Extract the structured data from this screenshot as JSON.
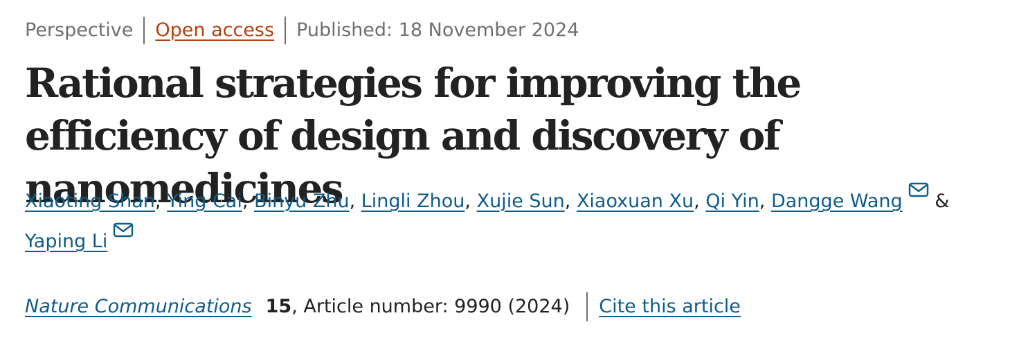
{
  "meta": {
    "article_type": "Perspective",
    "access": "Open access",
    "published": "Published: 18 November 2024"
  },
  "title": "Rational strategies for improving the efficiency of design and discovery of nanomedicines",
  "authors": [
    {
      "name": "Xiaoting Shan",
      "corresponding": false
    },
    {
      "name": "Ying Cai",
      "corresponding": false
    },
    {
      "name": "Binyu Zhu",
      "corresponding": false
    },
    {
      "name": "Lingli Zhou",
      "corresponding": false
    },
    {
      "name": "Xujie Sun",
      "corresponding": false
    },
    {
      "name": "Xiaoxuan Xu",
      "corresponding": false
    },
    {
      "name": "Qi Yin",
      "corresponding": false
    },
    {
      "name": "Dangge Wang",
      "corresponding": true
    },
    {
      "name": "Yaping Li",
      "corresponding": true
    }
  ],
  "author_separator": ",",
  "author_last_separator": "&",
  "citation": {
    "journal": "Nature Communications",
    "volume": "15",
    "article_number": ", Article number: 9990 (2024)",
    "cite_label": "Cite this article"
  },
  "icons": {
    "corresponding_author": "mail-icon"
  },
  "colors": {
    "link": "#0e5c8a",
    "open_access": "#b4400f",
    "meta_text": "#6f6f6f",
    "body_text": "#222222"
  }
}
